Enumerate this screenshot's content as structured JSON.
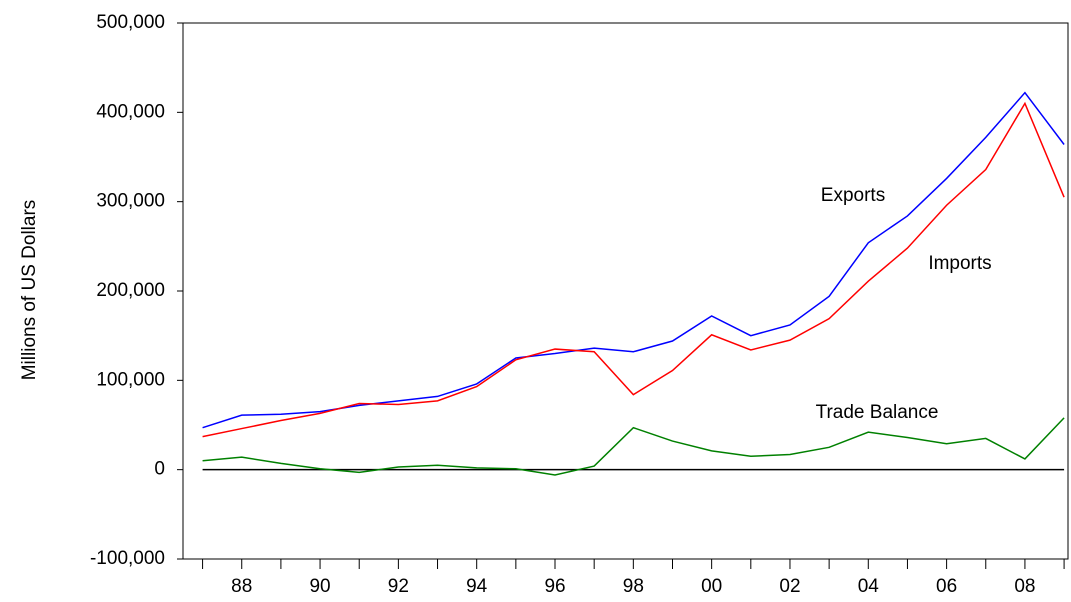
{
  "chart_data": {
    "type": "line",
    "ylabel": "Millions of US Dollars",
    "x": [
      1987,
      1988,
      1989,
      1990,
      1991,
      1992,
      1993,
      1994,
      1995,
      1996,
      1997,
      1998,
      1999,
      2000,
      2001,
      2002,
      2003,
      2004,
      2005,
      2006,
      2007,
      2008,
      2009
    ],
    "series": [
      {
        "name": "Exports",
        "color": "#0000ff",
        "values": [
          47000,
          61000,
          62000,
          65000,
          72000,
          77000,
          82000,
          96000,
          125000,
          130000,
          136000,
          132000,
          144000,
          172000,
          150000,
          162000,
          194000,
          254000,
          284000,
          326000,
          372000,
          422000,
          364000
        ]
      },
      {
        "name": "Imports",
        "color": "#ff0000",
        "values": [
          37000,
          46000,
          55000,
          63000,
          74000,
          73000,
          77000,
          93000,
          123000,
          135000,
          132000,
          84000,
          111000,
          151000,
          134000,
          145000,
          169000,
          211000,
          248000,
          296000,
          336000,
          410000,
          305000
        ]
      },
      {
        "name": "Trade Balance",
        "color": "#008000",
        "values": [
          10000,
          14000,
          7000,
          1000,
          -3000,
          3000,
          5000,
          2000,
          1000,
          -6000,
          4000,
          47000,
          32000,
          21000,
          15000,
          17000,
          25000,
          42000,
          36000,
          29000,
          35000,
          12000,
          58000
        ]
      }
    ],
    "xlim": [
      1986.5,
      2009.1
    ],
    "xticks": [
      {
        "value": 1988,
        "label": "88"
      },
      {
        "value": 1990,
        "label": "90"
      },
      {
        "value": 1992,
        "label": "92"
      },
      {
        "value": 1994,
        "label": "94"
      },
      {
        "value": 1996,
        "label": "96"
      },
      {
        "value": 1998,
        "label": "98"
      },
      {
        "value": 2000,
        "label": "00"
      },
      {
        "value": 2002,
        "label": "02"
      },
      {
        "value": 2004,
        "label": "04"
      },
      {
        "value": 2006,
        "label": "06"
      },
      {
        "value": 2008,
        "label": "08"
      }
    ],
    "xminorticks": [
      1987,
      1989,
      1991,
      1993,
      1995,
      1997,
      1999,
      2001,
      2003,
      2005,
      2007,
      2009
    ],
    "ylim": [
      -100000,
      500000
    ],
    "yticks": [
      {
        "value": -100000,
        "label": "-100,000"
      },
      0,
      {
        "value": 100000,
        "label": "100,000"
      },
      {
        "value": 200000,
        "label": "200,000"
      },
      {
        "value": 300000,
        "label": "300,000"
      },
      {
        "value": 400000,
        "label": "400,000"
      },
      {
        "value": 500000,
        "label": "500,000"
      }
    ],
    "zero_line": true
  }
}
